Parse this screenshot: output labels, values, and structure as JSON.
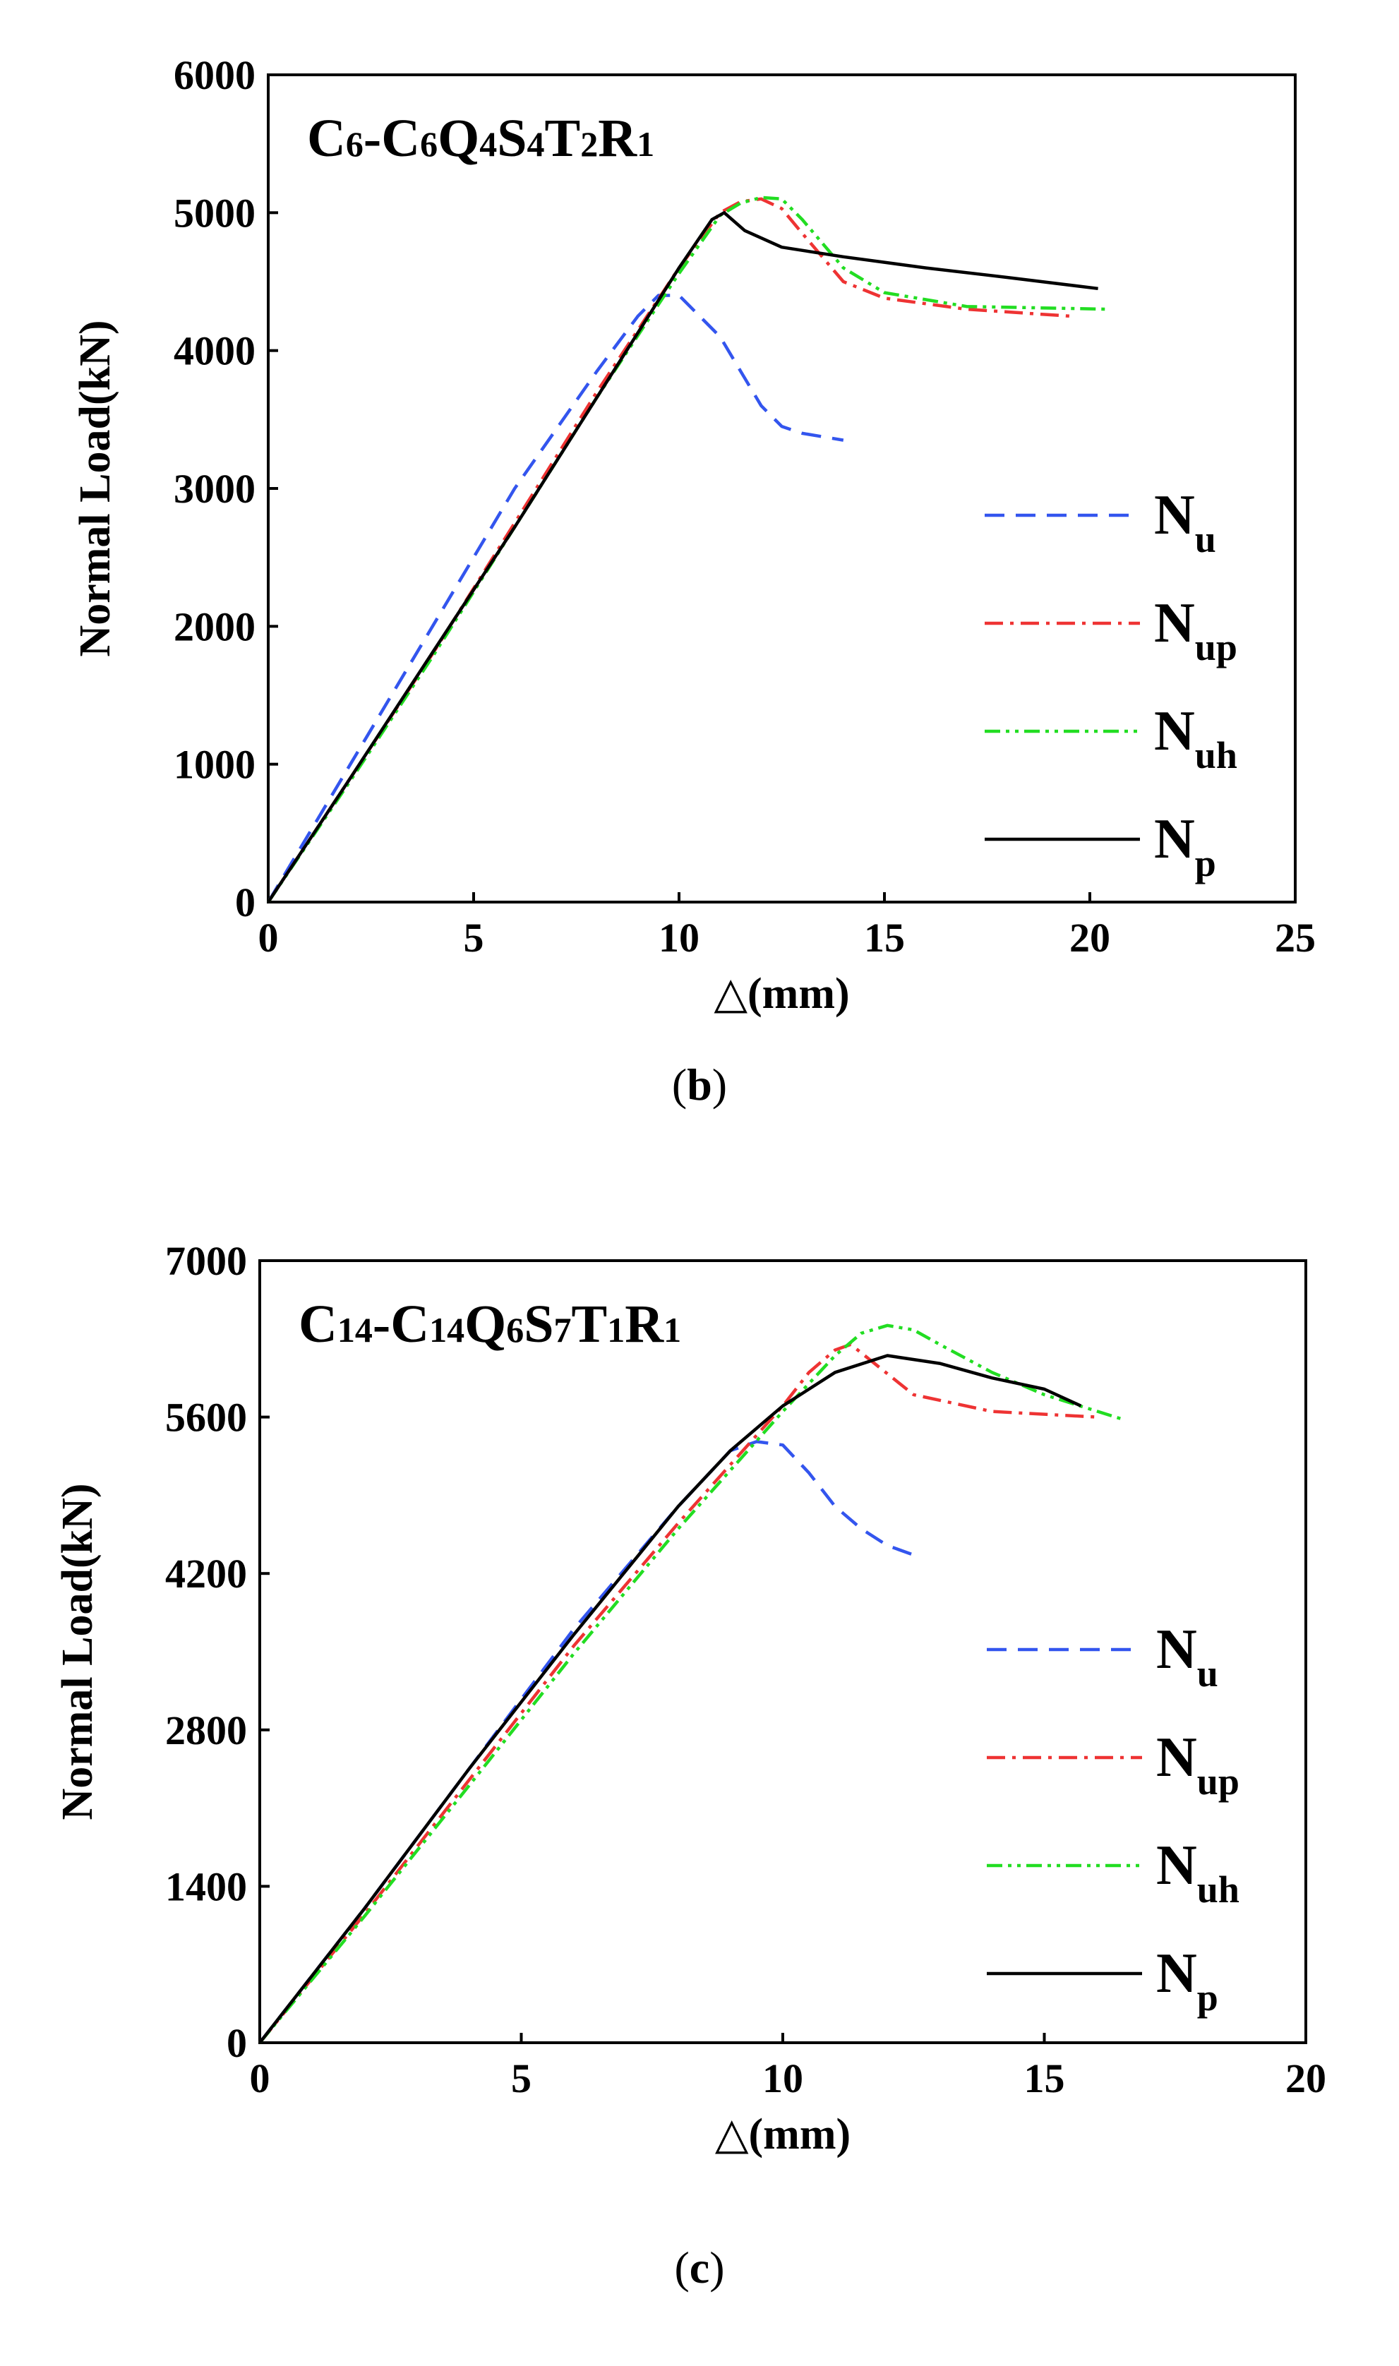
{
  "chart_data": [
    {
      "type": "line",
      "panel_label": "b",
      "title_parts": [
        {
          "t": "C",
          "sub": false
        },
        {
          "t": "6",
          "sub": true
        },
        {
          "t": "-C",
          "sub": false
        },
        {
          "t": "6",
          "sub": true
        },
        {
          "t": "Q",
          "sub": false
        },
        {
          "t": "4",
          "sub": true
        },
        {
          "t": "S",
          "sub": false
        },
        {
          "t": "4",
          "sub": true
        },
        {
          "t": "T",
          "sub": false
        },
        {
          "t": "2",
          "sub": true
        },
        {
          "t": "R",
          "sub": false
        },
        {
          "t": "1",
          "sub": true
        }
      ],
      "xlabel": "△(mm)",
      "ylabel": "Normal Load(kN)",
      "xlim": [
        0,
        25
      ],
      "ylim": [
        0,
        6000
      ],
      "xticks": [
        0,
        5,
        10,
        15,
        20,
        25
      ],
      "yticks": [
        0,
        1000,
        2000,
        3000,
        4000,
        5000,
        6000
      ],
      "legend_position": "right-middle",
      "series": [
        {
          "name": "N",
          "sub": "u",
          "color": "#3355ee",
          "dash": "dash",
          "x": [
            0,
            2,
            4,
            6,
            8,
            9,
            9.5,
            10,
            10.5,
            11,
            11.5,
            12,
            12.5,
            13,
            14
          ],
          "y": [
            0,
            1000,
            2000,
            3000,
            3850,
            4250,
            4400,
            4400,
            4250,
            4100,
            3850,
            3600,
            3450,
            3400,
            3350
          ]
        },
        {
          "name": "N",
          "sub": "up",
          "color": "#ee3333",
          "dash": "dashdot",
          "x": [
            0,
            2,
            4,
            6,
            8,
            10,
            11,
            11.5,
            12,
            12.5,
            13,
            14,
            15,
            17,
            19.5
          ],
          "y": [
            0,
            900,
            1800,
            2750,
            3700,
            4600,
            5000,
            5080,
            5100,
            5030,
            4850,
            4500,
            4380,
            4300,
            4250
          ]
        },
        {
          "name": "N",
          "sub": "uh",
          "color": "#22dd22",
          "dash": "dashdotdot",
          "x": [
            0,
            2,
            4,
            6,
            8,
            10,
            11,
            11.5,
            12,
            12.5,
            13,
            14,
            15,
            17,
            20.5
          ],
          "y": [
            0,
            880,
            1780,
            2720,
            3660,
            4560,
            4980,
            5070,
            5110,
            5100,
            4950,
            4600,
            4420,
            4320,
            4300
          ]
        },
        {
          "name": "N",
          "sub": "p",
          "color": "#000000",
          "dash": "solid",
          "x": [
            0,
            2,
            4,
            6,
            8,
            10,
            10.8,
            11.1,
            11.6,
            12.5,
            14,
            16,
            18,
            20.2
          ],
          "y": [
            0,
            900,
            1810,
            2720,
            3660,
            4600,
            4950,
            5000,
            4870,
            4750,
            4680,
            4600,
            4530,
            4450
          ]
        }
      ]
    },
    {
      "type": "line",
      "panel_label": "c",
      "title_parts": [
        {
          "t": "C",
          "sub": false
        },
        {
          "t": "14",
          "sub": true
        },
        {
          "t": "-C",
          "sub": false
        },
        {
          "t": "14",
          "sub": true
        },
        {
          "t": "Q",
          "sub": false
        },
        {
          "t": "6",
          "sub": true
        },
        {
          "t": "S",
          "sub": false
        },
        {
          "t": "7",
          "sub": true
        },
        {
          "t": "T",
          "sub": false
        },
        {
          "t": "1",
          "sub": true
        },
        {
          "t": "R",
          "sub": false
        },
        {
          "t": "1",
          "sub": true
        }
      ],
      "xlabel": "△(mm)",
      "ylabel": "Normal Load(kN)",
      "xlim": [
        0,
        20
      ],
      "ylim": [
        0,
        7000
      ],
      "xticks": [
        0,
        5,
        10,
        15,
        20
      ],
      "yticks": [
        0,
        1400,
        2800,
        4200,
        5600,
        7000
      ],
      "legend_position": "right-lower",
      "series": [
        {
          "name": "N",
          "sub": "u",
          "color": "#3355ee",
          "dash": "dash",
          "x": [
            0,
            2,
            4,
            6,
            8,
            9,
            9.5,
            10,
            10.5,
            11,
            11.5,
            12,
            12.6
          ],
          "y": [
            0,
            1200,
            2450,
            3700,
            4800,
            5300,
            5380,
            5350,
            5100,
            4800,
            4600,
            4450,
            4350
          ]
        },
        {
          "name": "N",
          "sub": "up",
          "color": "#ee3333",
          "dash": "dashdot",
          "x": [
            0,
            2,
            4,
            6,
            8,
            10,
            10.5,
            11,
            11.3,
            11.7,
            12.5,
            14,
            16
          ],
          "y": [
            0,
            1150,
            2350,
            3550,
            4650,
            5700,
            6000,
            6200,
            6250,
            6100,
            5800,
            5650,
            5600
          ]
        },
        {
          "name": "N",
          "sub": "uh",
          "color": "#22dd22",
          "dash": "dashdotdot",
          "x": [
            0,
            2,
            4,
            6,
            8,
            10,
            11,
            11.5,
            12,
            12.5,
            13,
            14,
            15,
            16.5
          ],
          "y": [
            0,
            1130,
            2300,
            3480,
            4600,
            5650,
            6150,
            6350,
            6420,
            6380,
            6250,
            6000,
            5800,
            5580
          ]
        },
        {
          "name": "N",
          "sub": "p",
          "color": "#000000",
          "dash": "solid",
          "x": [
            0,
            2,
            4,
            6,
            8,
            9,
            10,
            11,
            12,
            13,
            14,
            15,
            15.7
          ],
          "y": [
            0,
            1200,
            2450,
            3650,
            4800,
            5300,
            5700,
            6000,
            6150,
            6080,
            5950,
            5850,
            5700
          ]
        }
      ]
    }
  ]
}
